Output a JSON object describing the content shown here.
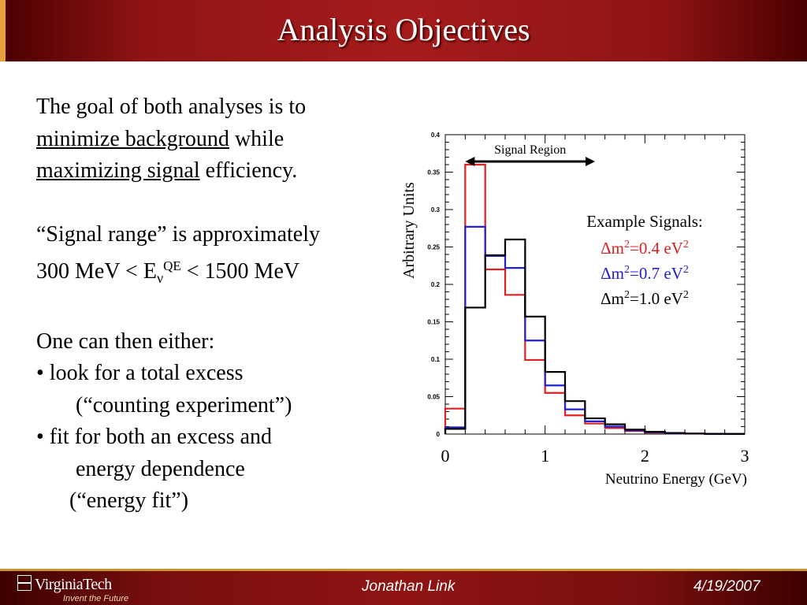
{
  "slide": {
    "title": "Analysis Objectives"
  },
  "body": {
    "line1": "The goal of both analyses is to",
    "line2_u": "minimize background",
    "line2_rest": " while",
    "line3_u": "maximizing signal",
    "line3_rest": " efficiency.",
    "line4": "“Signal range”  is approximately",
    "line5_a": "300 MeV < E",
    "line5_sub": "ν",
    "line5_sup": "QE",
    "line5_b": " < 1500 MeV",
    "line6": "One can then either:",
    "line7": "• look for a total excess",
    "line8": "(“counting experiment”)",
    "line9": "• fit for both an excess and",
    "line10": "energy dependence",
    "line11": "(“energy fit”)"
  },
  "chart_data": {
    "type": "line",
    "ylabel": "Arbitrary Units",
    "xlabel": "Neutrino Energy (GeV)",
    "xlim": [
      0,
      3
    ],
    "ylim": [
      0,
      0.4
    ],
    "x_ticks": [
      "0",
      "1",
      "2",
      "3"
    ],
    "y_ticks": [
      "0",
      "0.05",
      "0.1",
      "0.15",
      "0.2",
      "0.25",
      "0.3",
      "0.35",
      "0.4"
    ],
    "bin_edges": [
      0,
      0.2,
      0.4,
      0.6,
      0.8,
      1.0,
      1.2,
      1.4,
      1.6,
      1.8,
      2.0,
      2.2,
      2.4,
      2.6,
      2.8,
      3.0
    ],
    "annotation": "Signal Region",
    "signal_region": [
      0.2,
      1.5
    ],
    "legend_title": "Example Signals:",
    "series": [
      {
        "name": "Δm²=0.4 eV²",
        "label_main": "Δm",
        "label_mid": "=0.4 eV",
        "color": "#e02020",
        "values": [
          0.034,
          0.36,
          0.22,
          0.186,
          0.099,
          0.055,
          0.025,
          0.014,
          0.008,
          0.004,
          0.002,
          0.001,
          0.0005,
          0.0002,
          0.0001
        ]
      },
      {
        "name": "Δm²=0.7 eV²",
        "label_main": "Δm",
        "label_mid": "=0.7 eV",
        "color": "#2020d0",
        "values": [
          0.009,
          0.277,
          0.238,
          0.222,
          0.125,
          0.065,
          0.033,
          0.017,
          0.01,
          0.005,
          0.0025,
          0.0012,
          0.0006,
          0.0003,
          0.0001
        ]
      },
      {
        "name": "Δm²=1.0 eV²",
        "label_main": "Δm",
        "label_mid": "=1.0 eV",
        "color": "#000000",
        "values": [
          0.007,
          0.169,
          0.239,
          0.26,
          0.157,
          0.083,
          0.044,
          0.021,
          0.013,
          0.006,
          0.003,
          0.0015,
          0.0007,
          0.0003,
          0.0001
        ]
      }
    ]
  },
  "footer": {
    "logo_text": "VirginiaTech",
    "logo_tagline": "Invent the Future",
    "author": "Jonathan Link",
    "date": "4/19/2007"
  }
}
